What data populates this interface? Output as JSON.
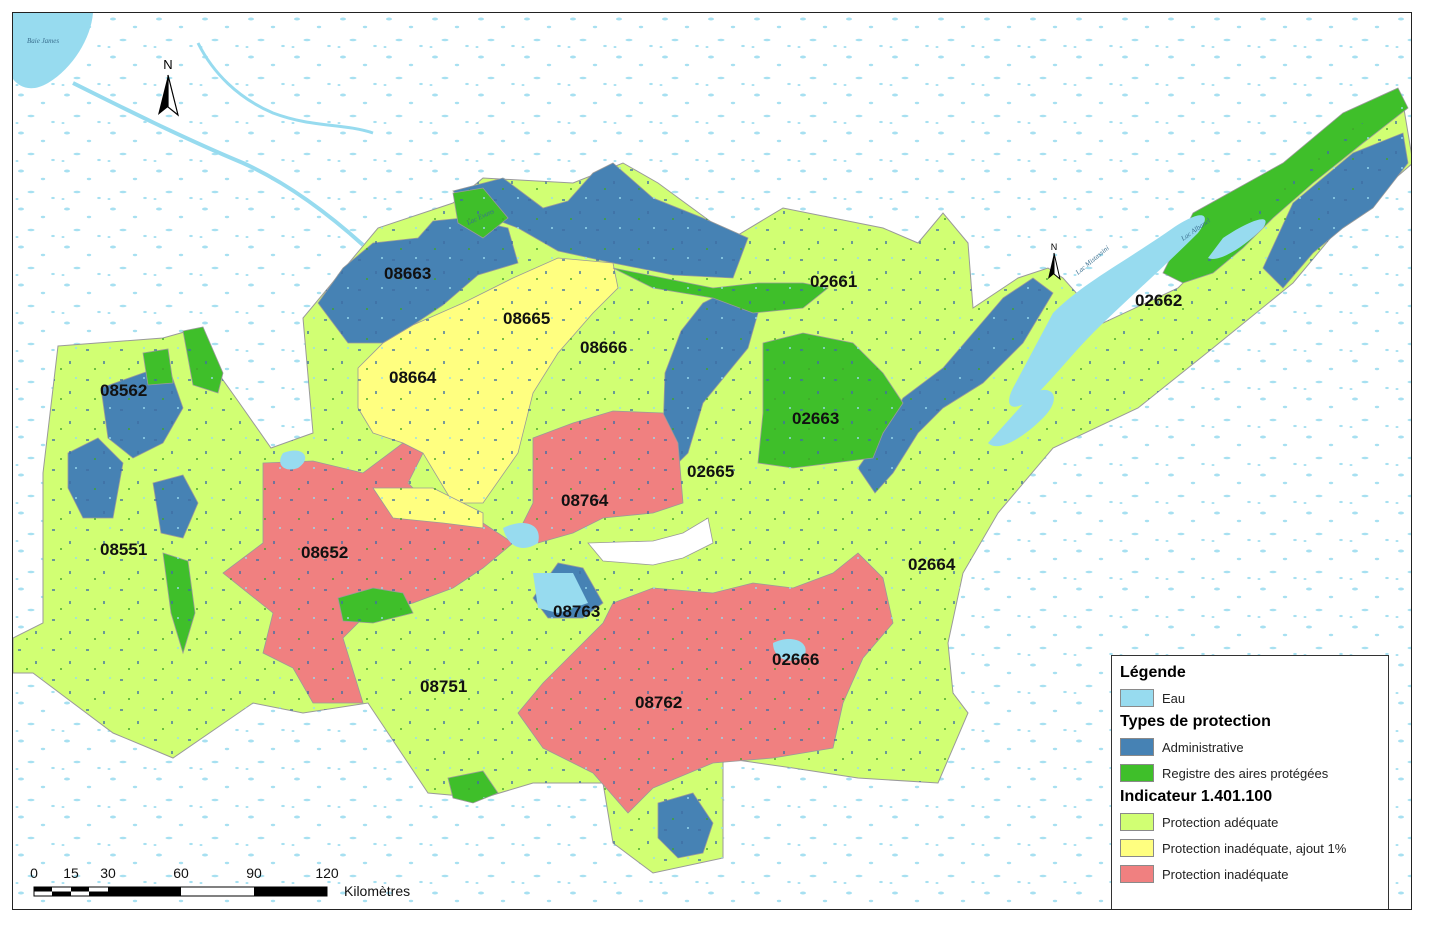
{
  "map": {
    "north_label": "N",
    "units": [
      {
        "id": "08663",
        "cls": "administrative"
      },
      {
        "id": "08665",
        "cls": "inadequate-add1"
      },
      {
        "id": "08666",
        "cls": "adequate"
      },
      {
        "id": "02661",
        "cls": "adequate"
      },
      {
        "id": "02662",
        "cls": "adequate"
      },
      {
        "id": "08562",
        "cls": "administrative"
      },
      {
        "id": "08664",
        "cls": "inadequate-add1"
      },
      {
        "id": "02663",
        "cls": "registry"
      },
      {
        "id": "02665",
        "cls": "adequate"
      },
      {
        "id": "08764",
        "cls": "inadequate"
      },
      {
        "id": "08551",
        "cls": "adequate"
      },
      {
        "id": "08652",
        "cls": "inadequate"
      },
      {
        "id": "02664",
        "cls": "adequate"
      },
      {
        "id": "08763",
        "cls": "administrative"
      },
      {
        "id": "02666",
        "cls": "inadequate"
      },
      {
        "id": "08751",
        "cls": "adequate"
      },
      {
        "id": "08762",
        "cls": "inadequate"
      }
    ],
    "water_labels": [
      "Baie James",
      "Lac Mistassini",
      "Lac Albanel",
      "Lac Evans"
    ]
  },
  "legend": {
    "title": "Légende",
    "water": {
      "label": "Eau",
      "color": "#97dbef"
    },
    "protection_title": "Types de protection",
    "protection": [
      {
        "label": "Administrative",
        "color": "#4682b4"
      },
      {
        "label": "Registre des aires protégées",
        "color": "#3fbf2a"
      }
    ],
    "indicator_title": "Indicateur 1.401.100",
    "indicator": [
      {
        "label": "Protection adéquate",
        "color": "#d1ff73"
      },
      {
        "label": "Protection inadéquate, ajout 1%",
        "color": "#ffff80"
      },
      {
        "label": "Protection inadéquate",
        "color": "#f08080"
      }
    ]
  },
  "scale": {
    "ticks": [
      "0",
      "15",
      "30",
      "60",
      "90",
      "120"
    ],
    "unit": "Kilomètres"
  }
}
